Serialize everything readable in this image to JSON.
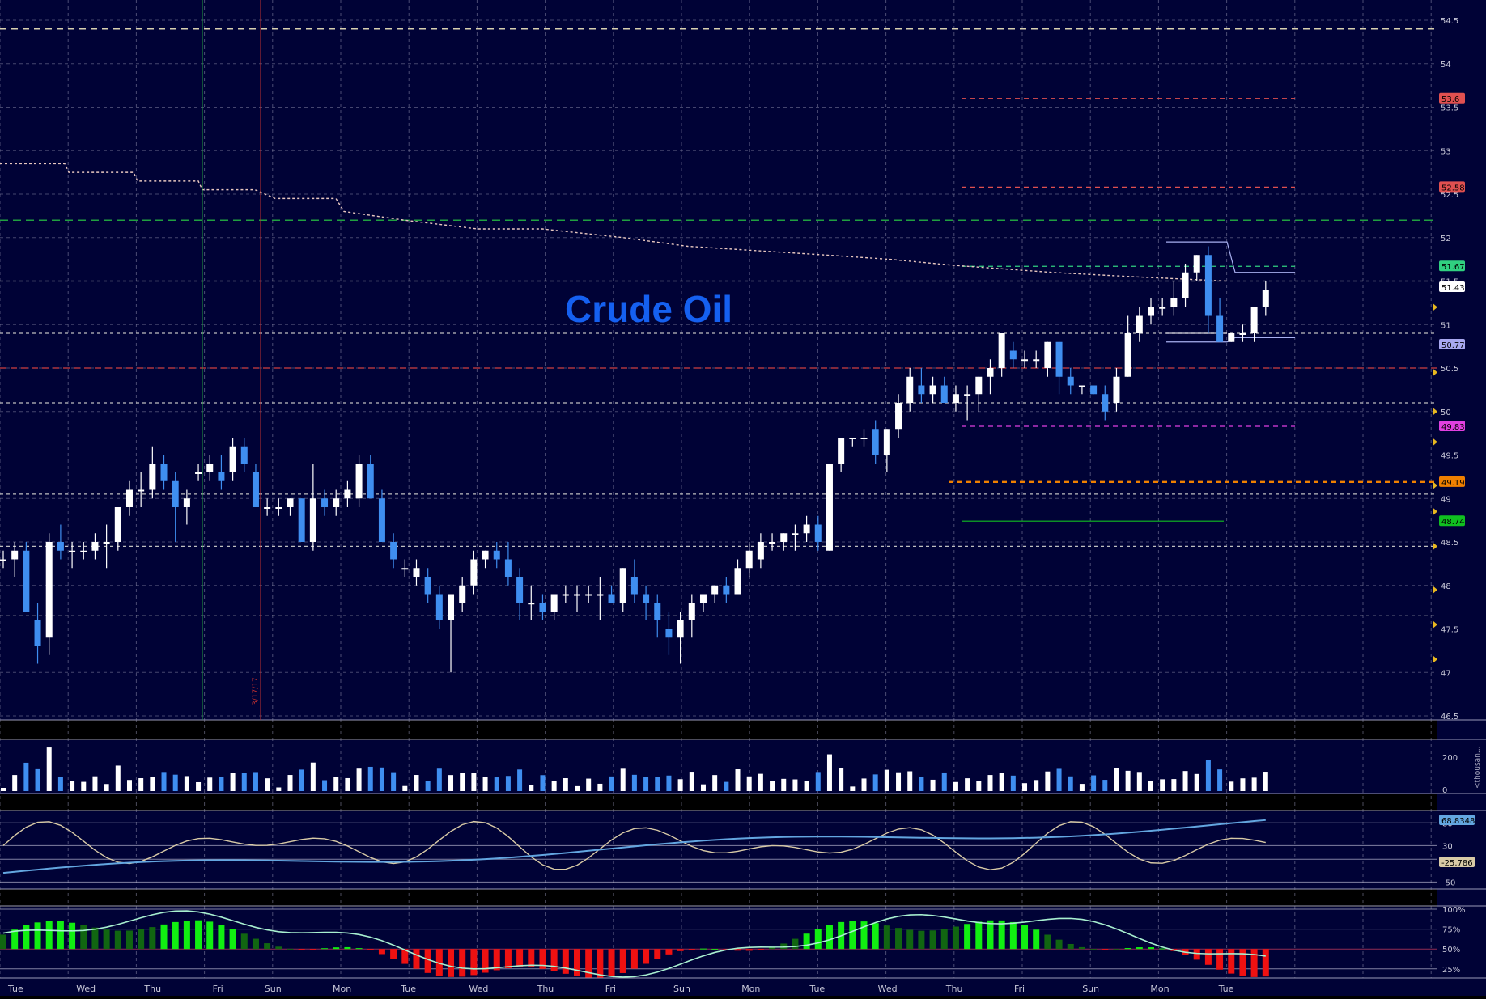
{
  "chart_title": "Crude Oil",
  "colors": {
    "background": "#000236",
    "grid": "#8a8aa8",
    "bull": "#ffffff",
    "bear": "#3f8ef0",
    "title": "#1560f0",
    "stoch_fast": "#d8caa6",
    "stoch_slow": "#63a6e0",
    "hist_up": "#11ee11",
    "hist_up_weak": "#116611",
    "hist_down": "#ee1111",
    "hist_line": "#a8f0d0"
  },
  "x_axis": {
    "tick_labels": [
      "Tue",
      "Wed",
      "Thu",
      "Fri",
      "Sun",
      "Mon",
      "Tue",
      "Wed",
      "Thu",
      "Fri",
      "Sun",
      "Mon",
      "Tue",
      "Wed",
      "Thu",
      "Fri",
      "Sun",
      "Mon",
      "Tue"
    ]
  },
  "date_marker": "3/17/17",
  "chart_data": [
    {
      "type": "candlestick",
      "panel": "price",
      "title": "Crude Oil",
      "ylim": [
        46.5,
        54.5
      ],
      "y_ticks": [
        "54.5",
        "54",
        "53.5",
        "53",
        "52.5",
        "52",
        "51.5",
        "51",
        "50.5",
        "50",
        "49.5",
        "49",
        "48.5",
        "48",
        "47.5",
        "47",
        "46.5"
      ],
      "levels": [
        {
          "label": "53.6",
          "value": 53.6,
          "color": "#e05050"
        },
        {
          "label": "52.58",
          "value": 52.58,
          "color": "#e05050"
        },
        {
          "label": "51.67",
          "value": 51.67,
          "color": "#30d080"
        },
        {
          "label": "51.43",
          "value": 51.43,
          "color": "#ffffff"
        },
        {
          "label": "50.77",
          "value": 50.77,
          "color": "#a8a8f0"
        },
        {
          "label": "49.83",
          "value": 49.83,
          "color": "#e040e0"
        },
        {
          "label": "49.19",
          "value": 49.19,
          "color": "#f08000"
        },
        {
          "label": "48.74",
          "value": 48.74,
          "color": "#10c020"
        }
      ],
      "ohlc": [
        [
          48.3,
          48.4,
          48.2,
          48.3
        ],
        [
          48.3,
          48.5,
          48.1,
          48.4
        ],
        [
          48.4,
          48.5,
          47.7,
          47.7
        ],
        [
          47.6,
          47.8,
          47.1,
          47.3
        ],
        [
          47.4,
          48.6,
          47.2,
          48.5
        ],
        [
          48.5,
          48.7,
          48.3,
          48.4
        ],
        [
          48.4,
          48.5,
          48.2,
          48.4
        ],
        [
          48.4,
          48.5,
          48.3,
          48.4
        ],
        [
          48.4,
          48.6,
          48.3,
          48.5
        ],
        [
          48.5,
          48.7,
          48.2,
          48.5
        ],
        [
          48.5,
          48.9,
          48.4,
          48.9
        ],
        [
          48.9,
          49.2,
          48.8,
          49.1
        ],
        [
          49.1,
          49.3,
          48.9,
          49.1
        ],
        [
          49.1,
          49.6,
          49.0,
          49.4
        ],
        [
          49.4,
          49.5,
          49.1,
          49.2
        ],
        [
          49.2,
          49.3,
          48.5,
          48.9
        ],
        [
          48.9,
          49.1,
          48.7,
          49.0
        ],
        [
          49.3,
          49.4,
          49.2,
          49.3
        ],
        [
          49.3,
          49.5,
          49.2,
          49.4
        ],
        [
          49.3,
          49.5,
          49.1,
          49.2
        ],
        [
          49.3,
          49.7,
          49.2,
          49.6
        ],
        [
          49.6,
          49.7,
          49.3,
          49.4
        ],
        [
          49.3,
          49.4,
          48.9,
          48.9
        ],
        [
          48.9,
          49.0,
          48.8,
          48.9
        ],
        [
          48.9,
          49.0,
          48.8,
          48.9
        ],
        [
          48.9,
          49.0,
          48.8,
          49.0
        ],
        [
          49.0,
          49.0,
          48.5,
          48.5
        ],
        [
          48.5,
          49.4,
          48.4,
          49.0
        ],
        [
          49.0,
          49.1,
          48.8,
          48.9
        ],
        [
          48.9,
          49.1,
          48.8,
          49.0
        ],
        [
          49.0,
          49.2,
          48.9,
          49.1
        ],
        [
          49.0,
          49.5,
          48.9,
          49.4
        ],
        [
          49.4,
          49.5,
          49.0,
          49.0
        ],
        [
          49.0,
          49.1,
          48.5,
          48.5
        ],
        [
          48.5,
          48.6,
          48.2,
          48.3
        ],
        [
          48.2,
          48.3,
          48.1,
          48.2
        ],
        [
          48.1,
          48.3,
          48.0,
          48.2
        ],
        [
          48.1,
          48.2,
          47.8,
          47.9
        ],
        [
          47.9,
          48.0,
          47.5,
          47.6
        ],
        [
          47.6,
          47.9,
          47.0,
          47.9
        ],
        [
          47.8,
          48.1,
          47.7,
          48.0
        ],
        [
          48.0,
          48.4,
          47.9,
          48.3
        ],
        [
          48.3,
          48.4,
          48.2,
          48.4
        ],
        [
          48.4,
          48.5,
          48.2,
          48.3
        ],
        [
          48.3,
          48.5,
          48.0,
          48.1
        ],
        [
          48.1,
          48.2,
          47.6,
          47.8
        ],
        [
          47.8,
          48.0,
          47.6,
          47.8
        ],
        [
          47.8,
          47.9,
          47.6,
          47.7
        ],
        [
          47.7,
          47.9,
          47.6,
          47.9
        ],
        [
          47.9,
          48.0,
          47.8,
          47.9
        ],
        [
          47.9,
          48.0,
          47.7,
          47.9
        ],
        [
          47.9,
          48.0,
          47.8,
          47.9
        ],
        [
          47.9,
          48.1,
          47.6,
          47.9
        ],
        [
          47.9,
          48.0,
          47.8,
          47.8
        ],
        [
          47.8,
          48.2,
          47.7,
          48.2
        ],
        [
          48.1,
          48.3,
          47.8,
          47.9
        ],
        [
          47.9,
          48.0,
          47.6,
          47.8
        ],
        [
          47.8,
          47.9,
          47.4,
          47.6
        ],
        [
          47.5,
          47.7,
          47.2,
          47.4
        ],
        [
          47.4,
          47.7,
          47.1,
          47.6
        ],
        [
          47.6,
          47.9,
          47.4,
          47.8
        ],
        [
          47.8,
          47.9,
          47.7,
          47.9
        ],
        [
          47.9,
          48.0,
          47.8,
          48.0
        ],
        [
          48.0,
          48.1,
          47.8,
          47.9
        ],
        [
          47.9,
          48.3,
          47.9,
          48.2
        ],
        [
          48.2,
          48.5,
          48.1,
          48.4
        ],
        [
          48.3,
          48.6,
          48.2,
          48.5
        ],
        [
          48.5,
          48.6,
          48.4,
          48.5
        ],
        [
          48.5,
          48.6,
          48.4,
          48.6
        ],
        [
          48.6,
          48.7,
          48.4,
          48.6
        ],
        [
          48.6,
          48.8,
          48.5,
          48.7
        ],
        [
          48.7,
          48.8,
          48.4,
          48.5
        ],
        [
          48.4,
          49.4,
          48.4,
          49.4
        ],
        [
          49.4,
          49.7,
          49.3,
          49.7
        ],
        [
          49.7,
          49.7,
          49.6,
          49.7
        ],
        [
          49.7,
          49.8,
          49.6,
          49.7
        ],
        [
          49.8,
          49.9,
          49.4,
          49.5
        ],
        [
          49.5,
          49.8,
          49.3,
          49.8
        ],
        [
          49.8,
          50.2,
          49.7,
          50.1
        ],
        [
          50.1,
          50.5,
          50.0,
          50.4
        ],
        [
          50.3,
          50.5,
          50.1,
          50.2
        ],
        [
          50.2,
          50.4,
          50.1,
          50.3
        ],
        [
          50.3,
          50.4,
          50.1,
          50.1
        ],
        [
          50.1,
          50.3,
          50.0,
          50.2
        ],
        [
          50.2,
          50.3,
          49.9,
          50.2
        ],
        [
          50.2,
          50.4,
          50.0,
          50.4
        ],
        [
          50.4,
          50.6,
          50.2,
          50.5
        ],
        [
          50.5,
          50.9,
          50.4,
          50.9
        ],
        [
          50.7,
          50.8,
          50.5,
          50.6
        ],
        [
          50.6,
          50.7,
          50.5,
          50.6
        ],
        [
          50.6,
          50.7,
          50.5,
          50.6
        ],
        [
          50.5,
          50.8,
          50.4,
          50.8
        ],
        [
          50.8,
          50.8,
          50.2,
          50.4
        ],
        [
          50.4,
          50.5,
          50.2,
          50.3
        ],
        [
          50.3,
          50.3,
          50.2,
          50.3
        ],
        [
          50.3,
          50.3,
          50.2,
          50.2
        ],
        [
          50.2,
          50.3,
          49.9,
          50.0
        ],
        [
          50.1,
          50.5,
          50.0,
          50.4
        ],
        [
          50.4,
          51.1,
          50.4,
          50.9
        ],
        [
          50.9,
          51.2,
          50.8,
          51.1
        ],
        [
          51.1,
          51.3,
          51.0,
          51.2
        ],
        [
          51.2,
          51.3,
          51.1,
          51.2
        ],
        [
          51.2,
          51.5,
          51.1,
          51.3
        ],
        [
          51.3,
          51.7,
          51.2,
          51.6
        ],
        [
          51.6,
          51.8,
          51.5,
          51.8
        ],
        [
          51.8,
          51.9,
          50.9,
          51.1
        ],
        [
          51.1,
          51.3,
          50.8,
          50.8
        ],
        [
          50.8,
          50.9,
          50.8,
          50.9
        ],
        [
          50.9,
          51.0,
          50.8,
          50.9
        ],
        [
          50.9,
          51.2,
          50.8,
          51.2
        ],
        [
          51.2,
          51.5,
          51.1,
          51.4
        ]
      ]
    },
    {
      "type": "bar",
      "panel": "volume",
      "y_ticks": [
        "200",
        "0"
      ],
      "y_unit_label": "<thousan..."
    },
    {
      "type": "line",
      "panel": "stochastic",
      "y_ticks": [
        "80",
        "30",
        "0",
        "-50"
      ],
      "series": [
        {
          "value_label": "68.8348",
          "color": "#63a6e0"
        },
        {
          "value_label": "-25.786",
          "color": "#d8caa6"
        }
      ]
    },
    {
      "type": "bar",
      "panel": "histogram",
      "y_ticks": [
        "100%",
        "75%",
        "50%",
        "25%"
      ]
    }
  ]
}
